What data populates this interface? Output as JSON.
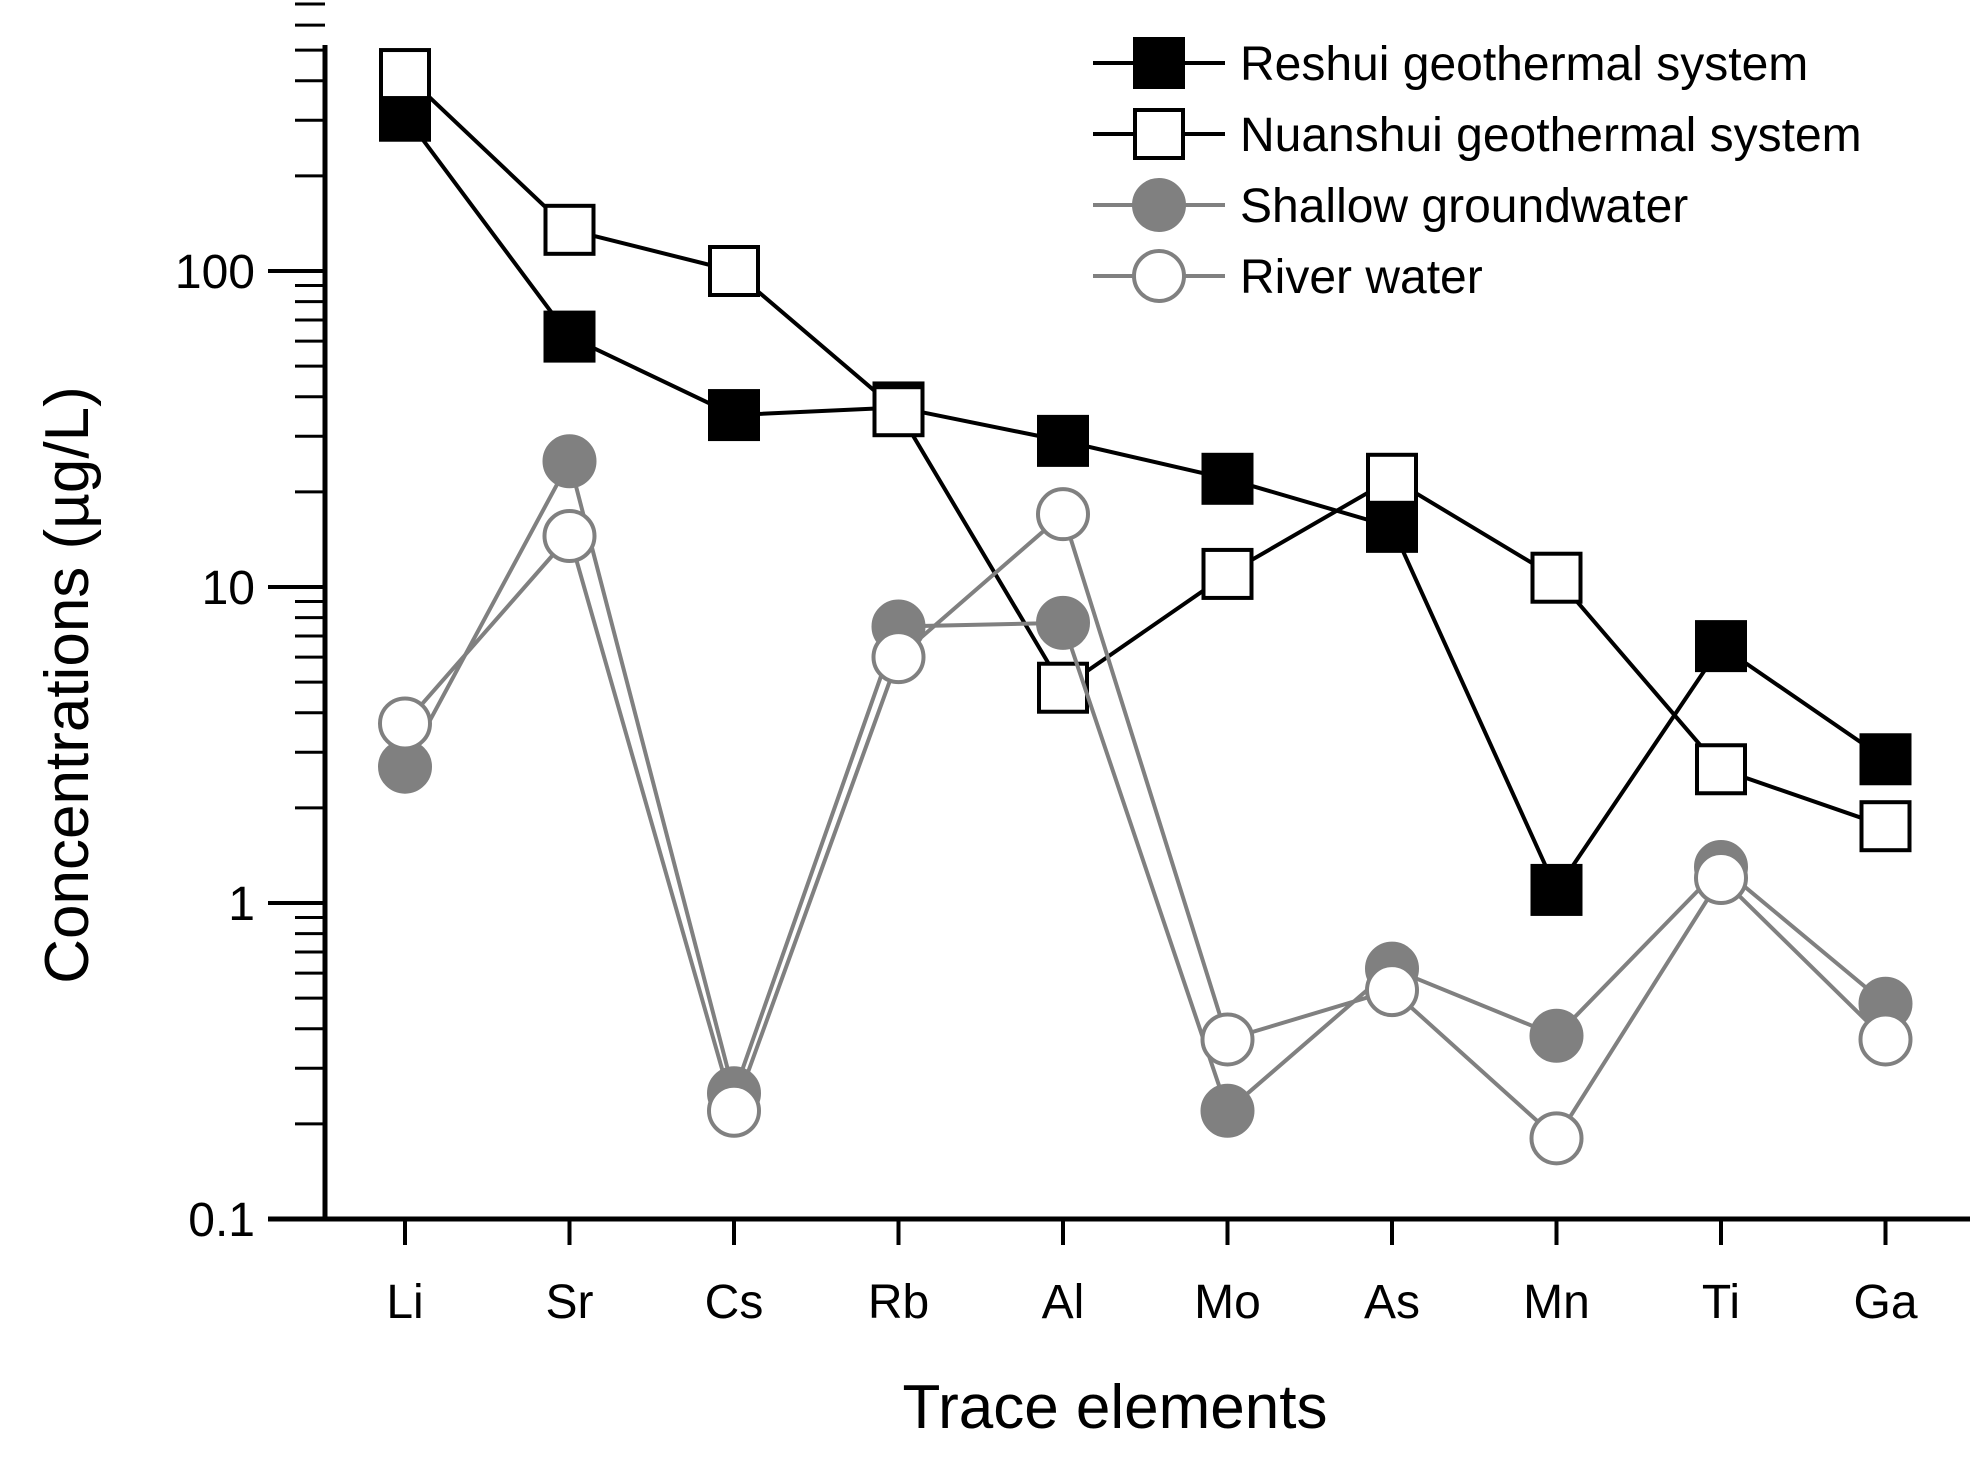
{
  "chart_data": {
    "type": "line",
    "title": "",
    "xlabel": "Trace elements",
    "ylabel": "Concentrations (µg/L)",
    "yscale": "log",
    "ylim": [
      0.1,
      700
    ],
    "yticks": [
      {
        "value": 0.1,
        "label": "0.1"
      },
      {
        "value": 1,
        "label": "1"
      },
      {
        "value": 10,
        "label": "10"
      },
      {
        "value": 100,
        "label": "100"
      }
    ],
    "categories": [
      "Li",
      "Sr",
      "Cs",
      "Rb",
      "Al",
      "Mo",
      "As",
      "Mn",
      "Ti",
      "Ga"
    ],
    "series": [
      {
        "name": "Reshui geothermal system",
        "marker": "square",
        "fill": "#000000",
        "stroke": "#000000",
        "line_color": "#000000",
        "values": [
          310,
          62,
          35,
          37,
          29,
          22,
          15.5,
          1.1,
          6.5,
          2.85
        ]
      },
      {
        "name": "Nuanshui geothermal system",
        "marker": "square",
        "fill": "#ffffff",
        "stroke": "#000000",
        "line_color": "#000000",
        "values": [
          420,
          135,
          100,
          36,
          4.8,
          11,
          22,
          10.7,
          2.65,
          1.75
        ]
      },
      {
        "name": "Shallow groundwater",
        "marker": "circle",
        "fill": "#808080",
        "stroke": "#808080",
        "line_color": "#808080",
        "values": [
          2.7,
          25,
          0.25,
          7.5,
          7.7,
          0.22,
          0.62,
          0.38,
          1.3,
          0.48
        ]
      },
      {
        "name": "River water",
        "marker": "circle",
        "fill": "#ffffff",
        "stroke": "#808080",
        "line_color": "#808080",
        "values": [
          3.7,
          14.5,
          0.22,
          6.0,
          17,
          0.37,
          0.53,
          0.18,
          1.2,
          0.37
        ]
      }
    ],
    "legend_position": "top-right",
    "grid": false
  }
}
